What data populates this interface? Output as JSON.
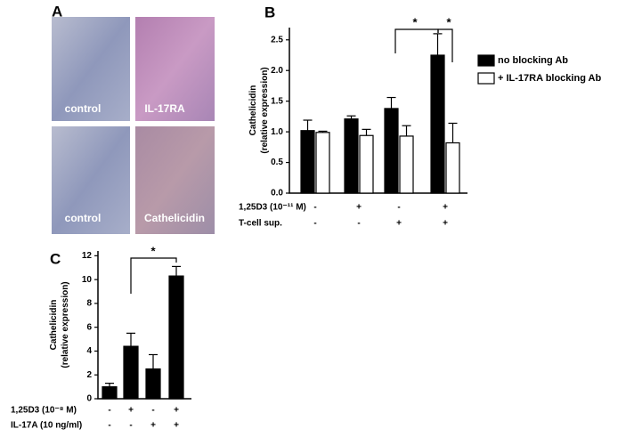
{
  "figure": {
    "panel_labels": [
      "A",
      "B",
      "C"
    ],
    "image_labels": [
      "control",
      "IL-17RA",
      "control",
      "Cathelicidin"
    ]
  },
  "chart_data": [
    {
      "type": "bar",
      "y_label": [
        "Cathelicidin",
        "(relative expression)"
      ],
      "categories": [
        null,
        null,
        null,
        null
      ],
      "series": [
        {
          "name": "no blocking Ab",
          "color": "#000000",
          "values": [
            1.02,
            1.21,
            1.38,
            2.25
          ],
          "errors": [
            0.17,
            0.05,
            0.18,
            0.35
          ]
        },
        {
          "name": "+ IL-17RA blocking Ab",
          "color": "#ffffff",
          "values": [
            0.99,
            0.94,
            0.93,
            0.82
          ],
          "errors": [
            0.02,
            0.1,
            0.17,
            0.32
          ]
        }
      ],
      "conditions": [
        {
          "label": "1,25D3 (10⁻¹¹ M)",
          "signs": [
            "-",
            "+",
            "-",
            "+"
          ]
        },
        {
          "label": "T-cell sup.",
          "signs": [
            "-",
            "-",
            "+",
            "+"
          ]
        }
      ],
      "annotations": [
        "*",
        "*"
      ],
      "ylim": [
        0,
        2.7
      ],
      "yticks": [
        {
          "value": 0,
          "label": "0.0"
        },
        0.5,
        {
          "value": 1,
          "label": "1.0"
        },
        1.5,
        {
          "value": 2,
          "label": "2.0"
        },
        2.5
      ],
      "grid": false
    },
    {
      "type": "bar",
      "y_label": [
        "Cathelicidin",
        "(relative expression)"
      ],
      "categories": [
        null,
        null,
        null,
        null
      ],
      "values": [
        1.0,
        4.4,
        2.5,
        10.3
      ],
      "errors": [
        0.3,
        1.1,
        1.2,
        0.8
      ],
      "color": "#000000",
      "conditions": [
        {
          "label": "1,25D3 (10⁻⁸ M)",
          "signs": [
            "-",
            "+",
            "-",
            "+"
          ]
        },
        {
          "label": "IL-17A (10 ng/ml)",
          "signs": [
            "-",
            "-",
            "+",
            "+"
          ]
        }
      ],
      "annotations": [
        "*"
      ],
      "ylim": [
        0,
        12.4
      ],
      "yticks": [
        0,
        2,
        4,
        6,
        8,
        10,
        12
      ],
      "grid": false
    }
  ]
}
